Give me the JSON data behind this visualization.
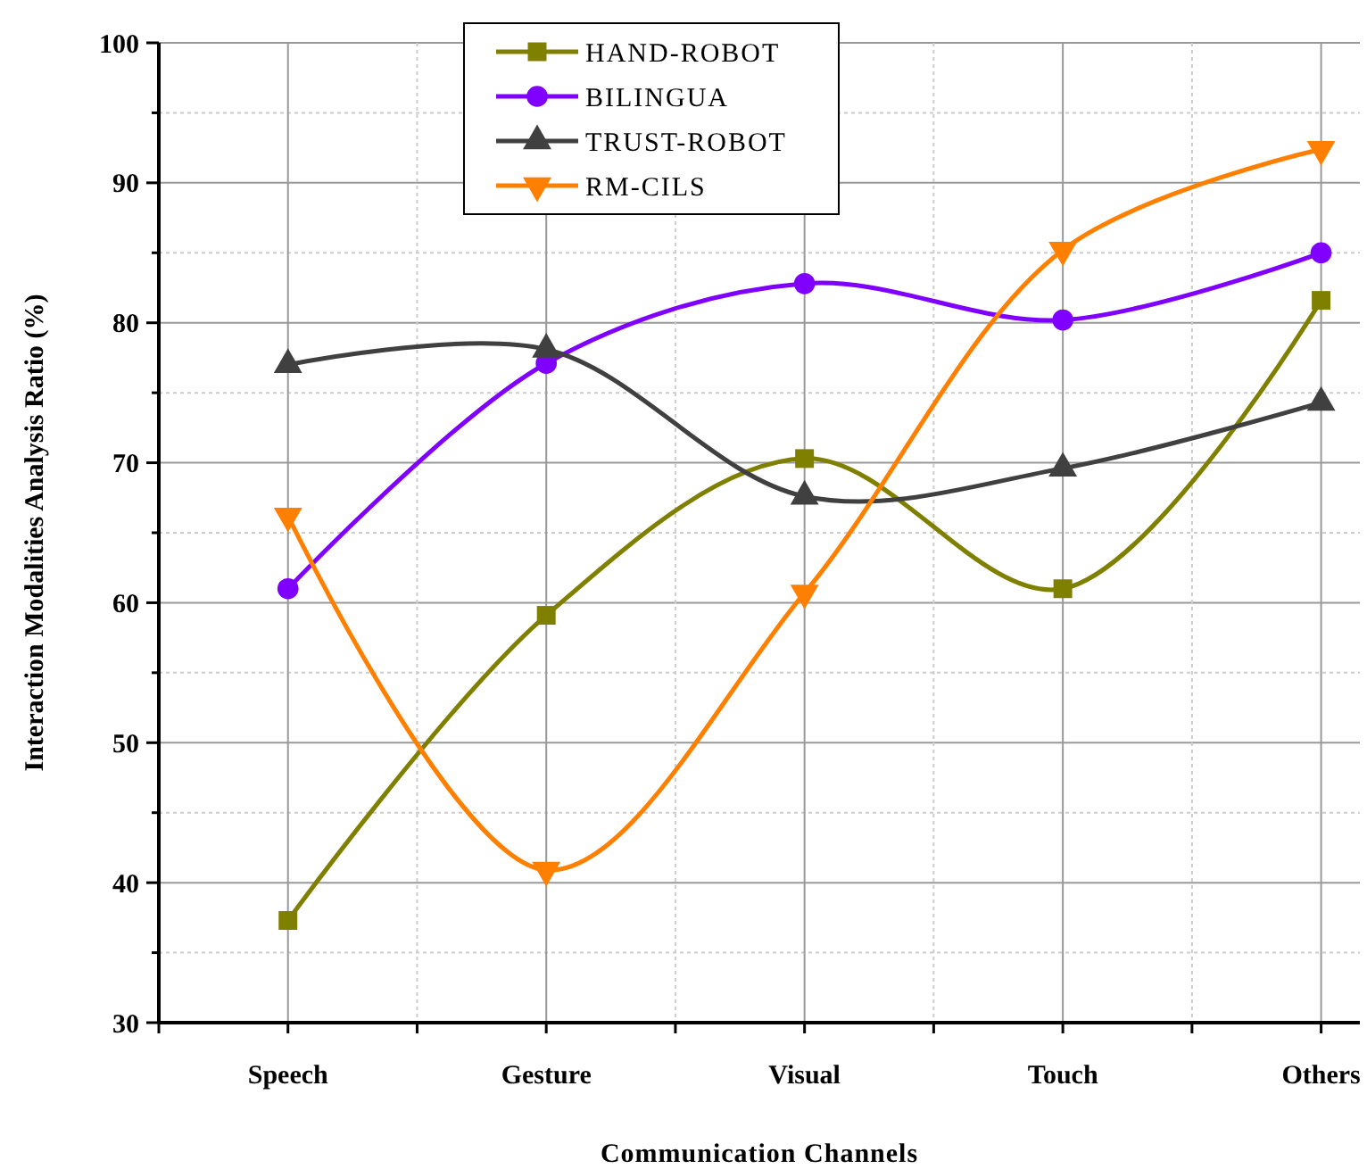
{
  "chart_data": {
    "type": "line",
    "xlabel": "Communication Channels",
    "ylabel": "Interaction Modalities Analysis Ratio (%)",
    "categories": [
      "Speech",
      "Gesture",
      "Visual",
      "Touch",
      "Others"
    ],
    "ylim": [
      30,
      100
    ],
    "yticks": [
      30,
      {
        "value": 35,
        "label": null
      },
      40,
      {
        "value": 45,
        "label": null
      },
      50,
      {
        "value": 55,
        "label": null
      },
      60,
      {
        "value": 65,
        "label": null
      },
      70,
      {
        "value": 75,
        "label": null
      },
      80,
      {
        "value": 85,
        "label": null
      },
      90,
      {
        "value": 95,
        "label": null
      },
      100
    ],
    "grid": true,
    "legend": "top",
    "series": [
      {
        "name": "HAND-ROBOT",
        "color": "#808000",
        "marker": "square",
        "values": [
          37.3,
          59.1,
          70.3,
          61,
          81.6
        ]
      },
      {
        "name": "BILINGUA",
        "color": "#8000ff",
        "marker": "circle",
        "values": [
          61,
          77.1,
          82.8,
          80.2,
          85
        ]
      },
      {
        "name": "TRUST-ROBOT",
        "color": "#404040",
        "marker": "triangle",
        "values": [
          77,
          78.1,
          67.6,
          69.6,
          74.3
        ]
      },
      {
        "name": "RM-CILS",
        "color": "#ff8000",
        "marker": "triangle-down",
        "values": [
          66.2,
          40.9,
          60.7,
          85.2,
          92.4
        ]
      }
    ]
  }
}
